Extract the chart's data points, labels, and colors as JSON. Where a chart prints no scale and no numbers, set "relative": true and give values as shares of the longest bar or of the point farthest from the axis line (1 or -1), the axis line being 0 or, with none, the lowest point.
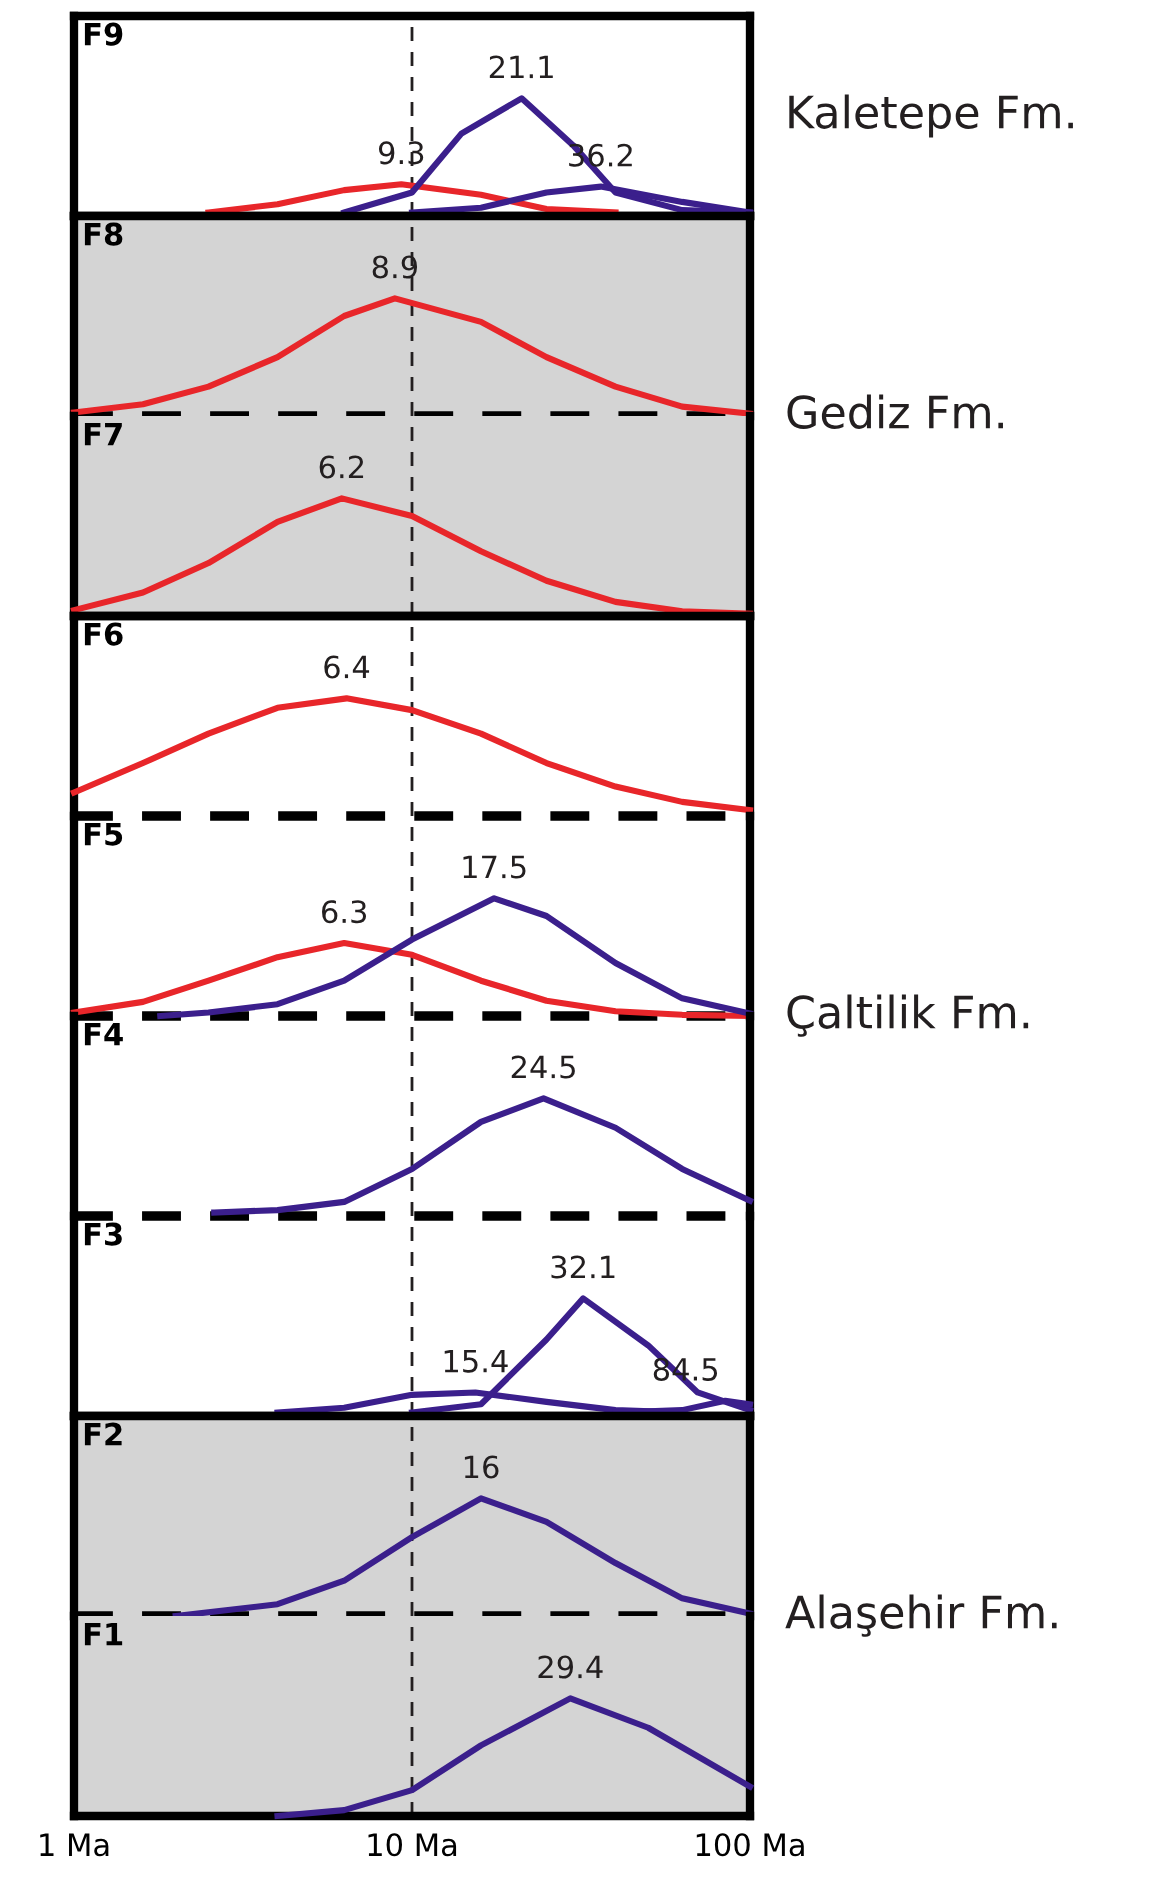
{
  "chart_data": [
    {
      "type": "line",
      "title": "F9",
      "relative": true,
      "log": "x",
      "xlim": [
        1,
        100
      ],
      "tick_labels": false,
      "grid": false,
      "legend": false,
      "annotations": [
        "Kaletepe Fm.",
        {
          "text": "9.3",
          "x": 9.3,
          "y": 0.27
        },
        {
          "text": "21.1",
          "x": 21.1,
          "y": 1
        },
        {
          "text": "36.2",
          "x": 36.2,
          "y": 0.25
        }
      ],
      "ref_lines": [
        {
          "axis": "x",
          "value": 10,
          "line_style": "dashed",
          "color": "#231f20"
        }
      ],
      "series": [
        {
          "color": "#e8262a",
          "x": [
            2.5,
            4,
            6.3,
            9.3,
            16,
            25,
            40
          ],
          "values": [
            0.03,
            0.1,
            0.22,
            0.27,
            0.18,
            0.06,
            0.03
          ]
        },
        {
          "color": "#3b1f8c",
          "x": [
            6.3,
            10,
            14,
            21.1,
            30,
            40,
            63,
            100
          ],
          "values": [
            0.03,
            0.2,
            0.7,
            1,
            0.6,
            0.2,
            0.05,
            0.03
          ]
        },
        {
          "color": "#3b1f8c",
          "x": [
            10,
            16,
            25,
            36.2,
            63,
            100
          ],
          "values": [
            0.03,
            0.07,
            0.2,
            0.25,
            0.12,
            0.03
          ]
        }
      ]
    },
    {
      "type": "line",
      "title": "F8",
      "relative": true,
      "log": "x",
      "xlim": [
        1,
        100
      ],
      "tick_labels": false,
      "grid": false,
      "legend": false,
      "annotations": [
        "Gediz Fm.",
        {
          "text": "8.9",
          "x": 8.9,
          "y": 1
        }
      ],
      "bands": [
        {
          "axis": "x",
          "from": 1,
          "to": 100,
          "color": "#d4d4d4"
        }
      ],
      "ref_lines": [
        {
          "axis": "x",
          "value": 10,
          "line_style": "dashed",
          "color": "#231f20"
        },
        {
          "axis": "y",
          "value": 0,
          "line_style": "dashed",
          "color": "#000000"
        }
      ],
      "series": [
        {
          "color": "#e8262a",
          "x": [
            1,
            1.6,
            2.5,
            4,
            6.3,
            8.9,
            16,
            25,
            40,
            63,
            100
          ],
          "values": [
            0.03,
            0.1,
            0.25,
            0.5,
            0.85,
            1,
            0.8,
            0.5,
            0.25,
            0.08,
            0.02
          ]
        }
      ]
    },
    {
      "type": "line",
      "title": "F7",
      "relative": true,
      "log": "x",
      "xlim": [
        1,
        100
      ],
      "tick_labels": false,
      "grid": false,
      "legend": false,
      "annotations": [
        {
          "text": "6.2",
          "x": 6.2,
          "y": 1
        }
      ],
      "bands": [
        {
          "axis": "x",
          "from": 1,
          "to": 100,
          "color": "#d4d4d4"
        }
      ],
      "ref_lines": [
        {
          "axis": "x",
          "value": 10,
          "line_style": "dashed",
          "color": "#231f20"
        }
      ],
      "series": [
        {
          "color": "#e8262a",
          "x": [
            1,
            1.6,
            2.5,
            4,
            6.2,
            10,
            16,
            25,
            40,
            63,
            100
          ],
          "values": [
            0.05,
            0.2,
            0.45,
            0.8,
            1,
            0.85,
            0.55,
            0.3,
            0.12,
            0.04,
            0.02
          ]
        }
      ]
    },
    {
      "type": "line",
      "title": "F6",
      "relative": true,
      "log": "x",
      "xlim": [
        1,
        100
      ],
      "tick_labels": false,
      "grid": false,
      "legend": false,
      "annotations": [
        "Çaltilik Fm.",
        {
          "text": "6.4",
          "x": 6.4,
          "y": 1
        }
      ],
      "ref_lines": [
        {
          "axis": "x",
          "value": 10,
          "line_style": "dashed",
          "color": "#231f20"
        },
        {
          "axis": "y",
          "value": 0,
          "line_style": "dashed",
          "color": "#000000"
        }
      ],
      "series": [
        {
          "color": "#e8262a",
          "x": [
            1,
            1.6,
            2.5,
            4,
            6.4,
            10,
            16,
            25,
            40,
            63,
            100
          ],
          "values": [
            0.2,
            0.45,
            0.7,
            0.92,
            1,
            0.9,
            0.7,
            0.45,
            0.25,
            0.12,
            0.05
          ]
        }
      ]
    },
    {
      "type": "line",
      "title": "F5",
      "relative": true,
      "log": "x",
      "xlim": [
        1,
        100
      ],
      "tick_labels": false,
      "grid": false,
      "legend": false,
      "annotations": [
        {
          "text": "6.3",
          "x": 6.3,
          "y": 0.62
        },
        {
          "text": "17.5",
          "x": 17.5,
          "y": 1
        }
      ],
      "ref_lines": [
        {
          "axis": "x",
          "value": 10,
          "line_style": "dashed",
          "color": "#231f20"
        },
        {
          "axis": "y",
          "value": 0,
          "line_style": "dashed",
          "color": "#000000"
        }
      ],
      "series": [
        {
          "color": "#e8262a",
          "x": [
            1,
            1.6,
            2.5,
            4,
            6.3,
            10,
            16,
            25,
            40,
            63,
            100
          ],
          "values": [
            0.03,
            0.12,
            0.3,
            0.5,
            0.62,
            0.52,
            0.3,
            0.13,
            0.04,
            0.01,
            0
          ]
        },
        {
          "color": "#3b1f8c",
          "x": [
            1.8,
            2.5,
            4,
            6.3,
            10,
            17.5,
            25,
            40,
            63,
            100
          ],
          "values": [
            0,
            0.03,
            0.1,
            0.3,
            0.65,
            1,
            0.85,
            0.45,
            0.15,
            0.02
          ]
        }
      ]
    },
    {
      "type": "line",
      "title": "F4",
      "relative": true,
      "log": "x",
      "xlim": [
        1,
        100
      ],
      "tick_labels": false,
      "grid": false,
      "legend": false,
      "annotations": [
        {
          "text": "24.5",
          "x": 24.5,
          "y": 1
        }
      ],
      "ref_lines": [
        {
          "axis": "x",
          "value": 10,
          "line_style": "dashed",
          "color": "#231f20"
        },
        {
          "axis": "y",
          "value": 0,
          "line_style": "dashed",
          "color": "#000000"
        }
      ],
      "series": [
        {
          "color": "#3b1f8c",
          "x": [
            2.6,
            4,
            6.3,
            10,
            16,
            24.5,
            40,
            63,
            100
          ],
          "values": [
            0.03,
            0.05,
            0.12,
            0.4,
            0.8,
            1,
            0.75,
            0.4,
            0.13
          ]
        }
      ]
    },
    {
      "type": "line",
      "title": "F3",
      "relative": true,
      "log": "x",
      "xlim": [
        1,
        100
      ],
      "tick_labels": false,
      "grid": false,
      "legend": false,
      "annotations": [
        {
          "text": "15.4",
          "x": 15.4,
          "y": 0.2
        },
        {
          "text": "32.1",
          "x": 32.1,
          "y": 1
        },
        {
          "text": "84.5",
          "x": 84.5,
          "y": 0.13
        }
      ],
      "ref_lines": [
        {
          "axis": "x",
          "value": 10,
          "line_style": "dashed",
          "color": "#231f20"
        }
      ],
      "series": [
        {
          "color": "#3b1f8c",
          "x": [
            4,
            6.3,
            10,
            15.4,
            25,
            40,
            63
          ],
          "values": [
            0.03,
            0.07,
            0.18,
            0.2,
            0.12,
            0.05,
            0.03
          ]
        },
        {
          "color": "#3b1f8c",
          "x": [
            10,
            16,
            25,
            32.1,
            50,
            70,
            100
          ],
          "values": [
            0.03,
            0.1,
            0.65,
            1,
            0.6,
            0.2,
            0.05
          ]
        },
        {
          "color": "#3b1f8c",
          "x": [
            40,
            63,
            84.5,
            100
          ],
          "values": [
            0.03,
            0.05,
            0.13,
            0.1
          ]
        }
      ]
    },
    {
      "type": "line",
      "title": "F2",
      "relative": true,
      "log": "x",
      "xlim": [
        1,
        100
      ],
      "tick_labels": false,
      "grid": false,
      "legend": false,
      "annotations": [
        "Alaşehir Fm.",
        {
          "text": "16",
          "x": 16,
          "y": 1
        }
      ],
      "bands": [
        {
          "axis": "x",
          "from": 1,
          "to": 100,
          "color": "#d4d4d4"
        }
      ],
      "ref_lines": [
        {
          "axis": "x",
          "value": 10,
          "line_style": "dashed",
          "color": "#231f20"
        },
        {
          "axis": "y",
          "value": 0,
          "line_style": "dashed",
          "color": "#000000"
        }
      ],
      "series": [
        {
          "color": "#3b1f8c",
          "x": [
            2,
            4,
            6.3,
            10,
            16,
            25,
            40,
            63,
            100
          ],
          "values": [
            0,
            0.1,
            0.3,
            0.67,
            1,
            0.8,
            0.45,
            0.15,
            0.02
          ]
        }
      ]
    },
    {
      "type": "line",
      "title": "F1",
      "relative": true,
      "log": "x",
      "xlim": [
        1,
        100
      ],
      "xticks": [
        {
          "value": 1,
          "label": "1 Ma"
        },
        {
          "value": 10,
          "label": "10 Ma"
        },
        {
          "value": 100,
          "label": "100 Ma"
        }
      ],
      "tick_labels": "x",
      "grid": false,
      "legend": false,
      "annotations": [
        {
          "text": "29.4",
          "x": 29.4,
          "y": 1
        }
      ],
      "bands": [
        {
          "axis": "x",
          "from": 1,
          "to": 100,
          "color": "#d4d4d4"
        }
      ],
      "ref_lines": [
        {
          "axis": "x",
          "value": 10,
          "line_style": "dashed",
          "color": "#231f20"
        }
      ],
      "series": [
        {
          "color": "#3b1f8c",
          "x": [
            4,
            6.3,
            10,
            16,
            29.4,
            50,
            100
          ],
          "values": [
            0,
            0.05,
            0.22,
            0.6,
            1,
            0.75,
            0.25
          ]
        }
      ]
    }
  ]
}
